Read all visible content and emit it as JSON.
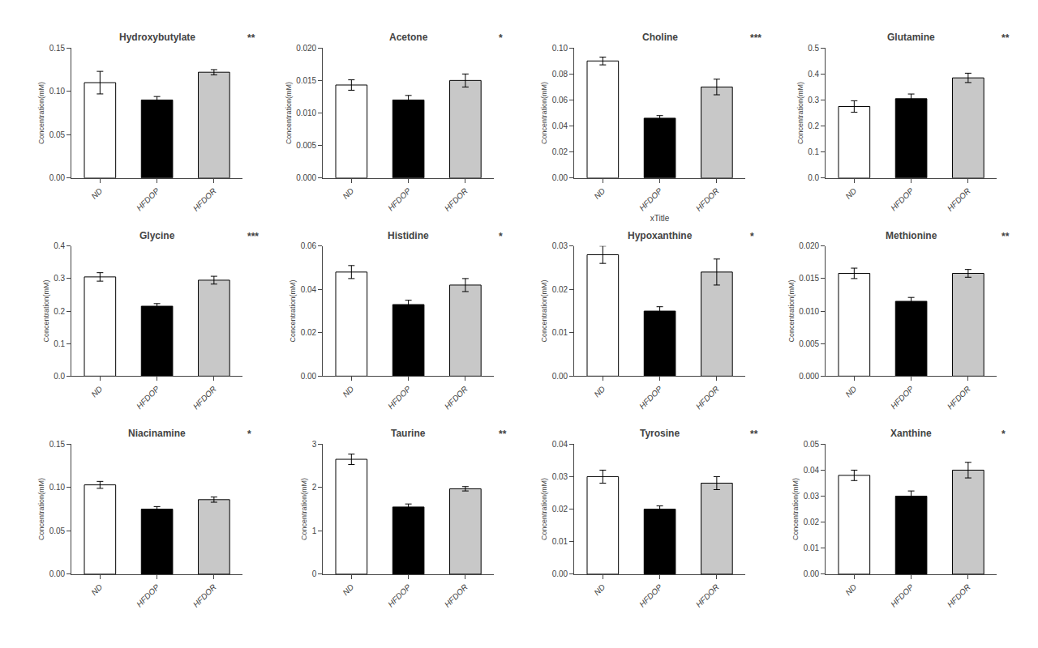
{
  "chart_data": [
    {
      "type": "bar",
      "title": "Hydroxybutylate",
      "annotation": "**",
      "categories": [
        "ND",
        "HFDOP",
        "HFDOR"
      ],
      "values": [
        0.11,
        0.09,
        0.122
      ],
      "errors": [
        0.013,
        0.004,
        0.003
      ],
      "colors": [
        "white",
        "black",
        "#c8c8c8"
      ],
      "ylabel": "Concentration(mM)",
      "ylim": [
        0,
        0.15
      ],
      "yticks": [
        {
          "value": 0,
          "label": "0.00"
        },
        0.05,
        {
          "value": 0.1,
          "label": "0.10"
        },
        0.15
      ],
      "grid": false
    },
    {
      "type": "bar",
      "title": "Acetone",
      "annotation": "*",
      "categories": [
        "ND",
        "HFDOP",
        "HFDOR"
      ],
      "values": [
        0.0143,
        0.012,
        0.015
      ],
      "errors": [
        0.0008,
        0.0007,
        0.001
      ],
      "colors": [
        "white",
        "black",
        "#c8c8c8"
      ],
      "ylabel": "Concentration(mM)",
      "ylim": [
        0,
        0.02
      ],
      "yticks": [
        {
          "value": 0,
          "label": "0.000"
        },
        0.005,
        {
          "value": 0.01,
          "label": "0.010"
        },
        0.015,
        {
          "value": 0.02,
          "label": "0.020"
        }
      ],
      "grid": false
    },
    {
      "type": "bar",
      "title": "Choline",
      "annotation": "***",
      "categories": [
        "ND",
        "HFDOP",
        "HFDOR"
      ],
      "values": [
        0.09,
        0.046,
        0.07
      ],
      "errors": [
        0.003,
        0.002,
        0.006
      ],
      "colors": [
        "white",
        "black",
        "#c8c8c8"
      ],
      "ylabel": "Concentration(mM)",
      "xlabel": "xTitle",
      "ylim": [
        0,
        0.1
      ],
      "yticks": [
        {
          "value": 0,
          "label": "0.00"
        },
        0.02,
        0.04,
        0.06,
        0.08,
        {
          "value": 0.1,
          "label": "0.10"
        }
      ],
      "grid": false
    },
    {
      "type": "bar",
      "title": "Glutamine",
      "annotation": "**",
      "categories": [
        "ND",
        "HFDOP",
        "HFDOR"
      ],
      "values": [
        0.275,
        0.305,
        0.385
      ],
      "errors": [
        0.022,
        0.018,
        0.018
      ],
      "colors": [
        "white",
        "black",
        "#c8c8c8"
      ],
      "ylabel": "Concentration(mM)",
      "ylim": [
        0,
        0.5
      ],
      "yticks": [
        {
          "value": 0,
          "label": "0.0"
        },
        0.1,
        0.2,
        0.3,
        0.4,
        0.5
      ],
      "grid": false
    },
    {
      "type": "bar",
      "title": "Glycine",
      "annotation": "***",
      "categories": [
        "ND",
        "HFDOP",
        "HFDOR"
      ],
      "values": [
        0.305,
        0.215,
        0.295
      ],
      "errors": [
        0.013,
        0.008,
        0.012
      ],
      "colors": [
        "white",
        "black",
        "#c8c8c8"
      ],
      "ylabel": "Concentration(mM)",
      "ylim": [
        0,
        0.4
      ],
      "yticks": [
        {
          "value": 0,
          "label": "0.0"
        },
        0.1,
        0.2,
        0.3,
        0.4
      ],
      "grid": false
    },
    {
      "type": "bar",
      "title": "Histidine",
      "annotation": "*",
      "categories": [
        "ND",
        "HFDOP",
        "HFDOR"
      ],
      "values": [
        0.048,
        0.033,
        0.042
      ],
      "errors": [
        0.003,
        0.002,
        0.003
      ],
      "colors": [
        "white",
        "black",
        "#c8c8c8"
      ],
      "ylabel": "Concentration(mM)",
      "ylim": [
        0,
        0.06
      ],
      "yticks": [
        {
          "value": 0,
          "label": "0.00"
        },
        0.02,
        0.04,
        0.06
      ],
      "grid": false
    },
    {
      "type": "bar",
      "title": "Hypoxanthine",
      "annotation": "*",
      "categories": [
        "ND",
        "HFDOP",
        "HFDOR"
      ],
      "values": [
        0.028,
        0.015,
        0.024
      ],
      "errors": [
        0.002,
        0.001,
        0.003
      ],
      "colors": [
        "white",
        "black",
        "#c8c8c8"
      ],
      "ylabel": "Concentration(mM)",
      "ylim": [
        0,
        0.03
      ],
      "yticks": [
        {
          "value": 0,
          "label": "0.00"
        },
        0.01,
        0.02,
        0.03
      ],
      "grid": false
    },
    {
      "type": "bar",
      "title": "Methionine",
      "annotation": "**",
      "categories": [
        "ND",
        "HFDOP",
        "HFDOR"
      ],
      "values": [
        0.0158,
        0.0115,
        0.0158
      ],
      "errors": [
        0.0008,
        0.0006,
        0.0006
      ],
      "colors": [
        "white",
        "black",
        "#c8c8c8"
      ],
      "ylabel": "Concentration(mM)",
      "ylim": [
        0,
        0.02
      ],
      "yticks": [
        {
          "value": 0,
          "label": "0.000"
        },
        0.005,
        {
          "value": 0.01,
          "label": "0.010"
        },
        0.015,
        {
          "value": 0.02,
          "label": "0.020"
        }
      ],
      "grid": false
    },
    {
      "type": "bar",
      "title": "Niacinamine",
      "annotation": "*",
      "categories": [
        "ND",
        "HFDOP",
        "HFDOR"
      ],
      "values": [
        0.103,
        0.075,
        0.086
      ],
      "errors": [
        0.004,
        0.003,
        0.003
      ],
      "colors": [
        "white",
        "black",
        "#c8c8c8"
      ],
      "ylabel": "Concentration(mM)",
      "ylim": [
        0,
        0.15
      ],
      "yticks": [
        {
          "value": 0,
          "label": "0.00"
        },
        0.05,
        {
          "value": 0.1,
          "label": "0.10"
        },
        0.15
      ],
      "grid": false
    },
    {
      "type": "bar",
      "title": "Taurine",
      "annotation": "**",
      "categories": [
        "ND",
        "HFDOP",
        "HFDOR"
      ],
      "values": [
        2.65,
        1.55,
        1.97
      ],
      "errors": [
        0.12,
        0.07,
        0.05
      ],
      "colors": [
        "white",
        "black",
        "#c8c8c8"
      ],
      "ylabel": "Concentration(mM)",
      "ylim": [
        0,
        3
      ],
      "yticks": [
        0,
        1,
        2,
        3
      ],
      "grid": false
    },
    {
      "type": "bar",
      "title": "Tyrosine",
      "annotation": "**",
      "categories": [
        "ND",
        "HFDOP",
        "HFDOR"
      ],
      "values": [
        0.03,
        0.02,
        0.028
      ],
      "errors": [
        0.002,
        0.001,
        0.002
      ],
      "colors": [
        "white",
        "black",
        "#c8c8c8"
      ],
      "ylabel": "Concentration(mM)",
      "ylim": [
        0,
        0.04
      ],
      "yticks": [
        {
          "value": 0,
          "label": "0.00"
        },
        0.01,
        0.02,
        0.03,
        0.04
      ],
      "grid": false
    },
    {
      "type": "bar",
      "title": "Xanthine",
      "annotation": "*",
      "categories": [
        "ND",
        "HFDOP",
        "HFDOR"
      ],
      "values": [
        0.038,
        0.03,
        0.04
      ],
      "errors": [
        0.002,
        0.002,
        0.003
      ],
      "colors": [
        "white",
        "black",
        "#c8c8c8"
      ],
      "ylabel": "Concentration(mM)",
      "ylim": [
        0,
        0.05
      ],
      "yticks": [
        {
          "value": 0,
          "label": "0.00"
        },
        0.01,
        0.02,
        0.03,
        0.04,
        0.05
      ],
      "grid": false
    }
  ]
}
